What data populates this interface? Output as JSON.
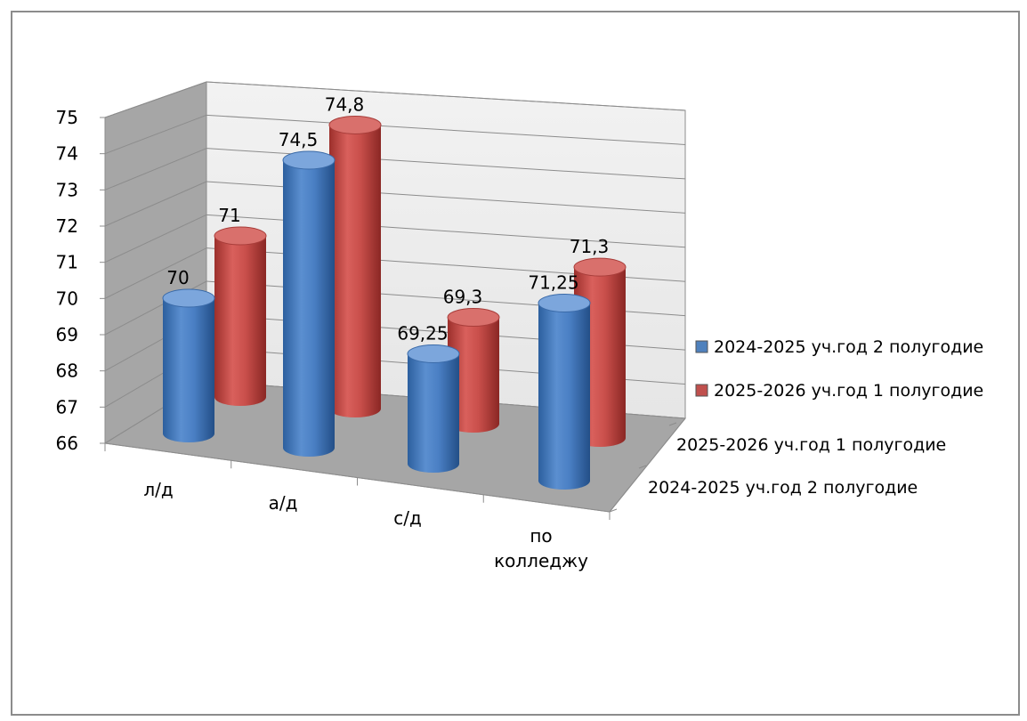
{
  "chart_data": {
    "type": "bar",
    "subtype": "3d-cylinder",
    "categories": [
      "л/д",
      "а/д",
      "с/д",
      "по колледжу"
    ],
    "series": [
      {
        "name": "2024-2025 уч.год 2 полугодие",
        "values": [
          70,
          74.5,
          69.25,
          71.25
        ],
        "labels": [
          "70",
          "74,5",
          "69,25",
          "71,25"
        ],
        "color": "#4f81bd"
      },
      {
        "name": "2025-2026 уч.год 1 полугодие",
        "values": [
          71,
          74.8,
          69.3,
          71.3
        ],
        "labels": [
          "71",
          "74,8",
          "69,3",
          "71,3"
        ],
        "color": "#c0504d"
      }
    ],
    "y_ticks": [
      "66",
      "67",
      "68",
      "69",
      "70",
      "71",
      "72",
      "73",
      "74",
      "75"
    ],
    "ylim": [
      66,
      75
    ],
    "depth_labels": [
      "2025-2026 уч.год 1 полугодие",
      "2024-2025 уч.год 2 полугодие"
    ],
    "legend_position": "right",
    "grid": true,
    "title": "",
    "xlabel": "",
    "ylabel": ""
  }
}
